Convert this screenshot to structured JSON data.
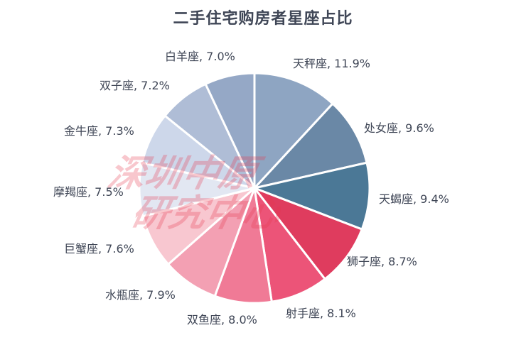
{
  "chart_data": {
    "type": "pie",
    "title": "二手住宅购房者星座占比",
    "watermark": [
      "深圳中原",
      "研究中心"
    ],
    "slices": [
      {
        "label": "天秤座",
        "value": 11.9,
        "display": "天秤座, 11.9%",
        "color": "#8ea5c2"
      },
      {
        "label": "处女座",
        "value": 9.6,
        "display": "处女座, 9.6%",
        "color": "#6a88a6"
      },
      {
        "label": "天蝎座",
        "value": 9.4,
        "display": "天蝎座, 9.4%",
        "color": "#4b7896"
      },
      {
        "label": "狮子座",
        "value": 8.7,
        "display": "狮子座, 8.7%",
        "color": "#df3c5e"
      },
      {
        "label": "射手座",
        "value": 8.1,
        "display": "射手座, 8.1%",
        "color": "#ec5478"
      },
      {
        "label": "双鱼座",
        "value": 8.0,
        "display": "双鱼座, 8.0%",
        "color": "#f07a96"
      },
      {
        "label": "水瓶座",
        "value": 7.9,
        "display": "水瓶座, 7.9%",
        "color": "#f3a0b3"
      },
      {
        "label": "巨蟹座",
        "value": 7.6,
        "display": "巨蟹座, 7.6%",
        "color": "#f8c7d0"
      },
      {
        "label": "摩羯座",
        "value": 7.5,
        "display": "摩羯座, 7.5%",
        "color": "#e2e7f2"
      },
      {
        "label": "金牛座",
        "value": 7.3,
        "display": "金牛座, 7.3%",
        "color": "#cdd7ea"
      },
      {
        "label": "双子座",
        "value": 7.2,
        "display": "双子座, 7.2%",
        "color": "#afbdd6"
      },
      {
        "label": "白羊座",
        "value": 7.0,
        "display": "白羊座, 7.0%",
        "color": "#95a8c6"
      }
    ]
  }
}
